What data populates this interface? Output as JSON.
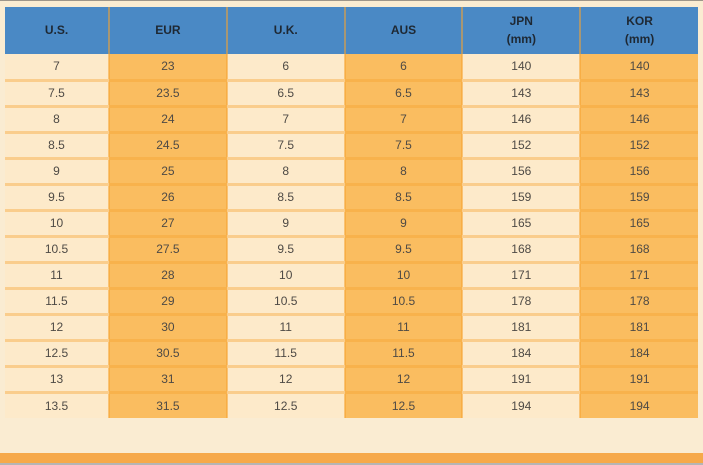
{
  "chart_data": {
    "type": "table",
    "columns": [
      {
        "label": "U.S.",
        "sublabel": "",
        "shade": "light"
      },
      {
        "label": "EUR",
        "sublabel": "",
        "shade": "dark"
      },
      {
        "label": "U.K.",
        "sublabel": "",
        "shade": "light"
      },
      {
        "label": "AUS",
        "sublabel": "",
        "shade": "dark"
      },
      {
        "label": "JPN",
        "sublabel": "(mm)",
        "shade": "light"
      },
      {
        "label": "KOR",
        "sublabel": "(mm)",
        "shade": "dark"
      }
    ],
    "rows": [
      [
        "7",
        "23",
        "6",
        "6",
        "140",
        "140"
      ],
      [
        "7.5",
        "23.5",
        "6.5",
        "6.5",
        "143",
        "143"
      ],
      [
        "8",
        "24",
        "7",
        "7",
        "146",
        "146"
      ],
      [
        "8.5",
        "24.5",
        "7.5",
        "7.5",
        "152",
        "152"
      ],
      [
        "9",
        "25",
        "8",
        "8",
        "156",
        "156"
      ],
      [
        "9.5",
        "26",
        "8.5",
        "8.5",
        "159",
        "159"
      ],
      [
        "10",
        "27",
        "9",
        "9",
        "165",
        "165"
      ],
      [
        "10.5",
        "27.5",
        "9.5",
        "9.5",
        "168",
        "168"
      ],
      [
        "11",
        "28",
        "10",
        "10",
        "171",
        "171"
      ],
      [
        "11.5",
        "29",
        "10.5",
        "10.5",
        "178",
        "178"
      ],
      [
        "12",
        "30",
        "11",
        "11",
        "181",
        "181"
      ],
      [
        "12.5",
        "30.5",
        "11.5",
        "11.5",
        "184",
        "184"
      ],
      [
        "13",
        "31",
        "12",
        "12",
        "191",
        "191"
      ],
      [
        "13.5",
        "31.5",
        "12.5",
        "12.5",
        "194",
        "194"
      ]
    ]
  },
  "colors": {
    "header_bg": "#4A89C5",
    "header_text": "#1E2833",
    "cell_light": "#FDEACA",
    "cell_dark": "#FABD60",
    "cell_text": "#4E4A45",
    "page_bg": "#FAECD2",
    "bottom_strip": "#F6A94A",
    "bottom_line": "#B5B5B5",
    "top_line": "#9E968A"
  }
}
